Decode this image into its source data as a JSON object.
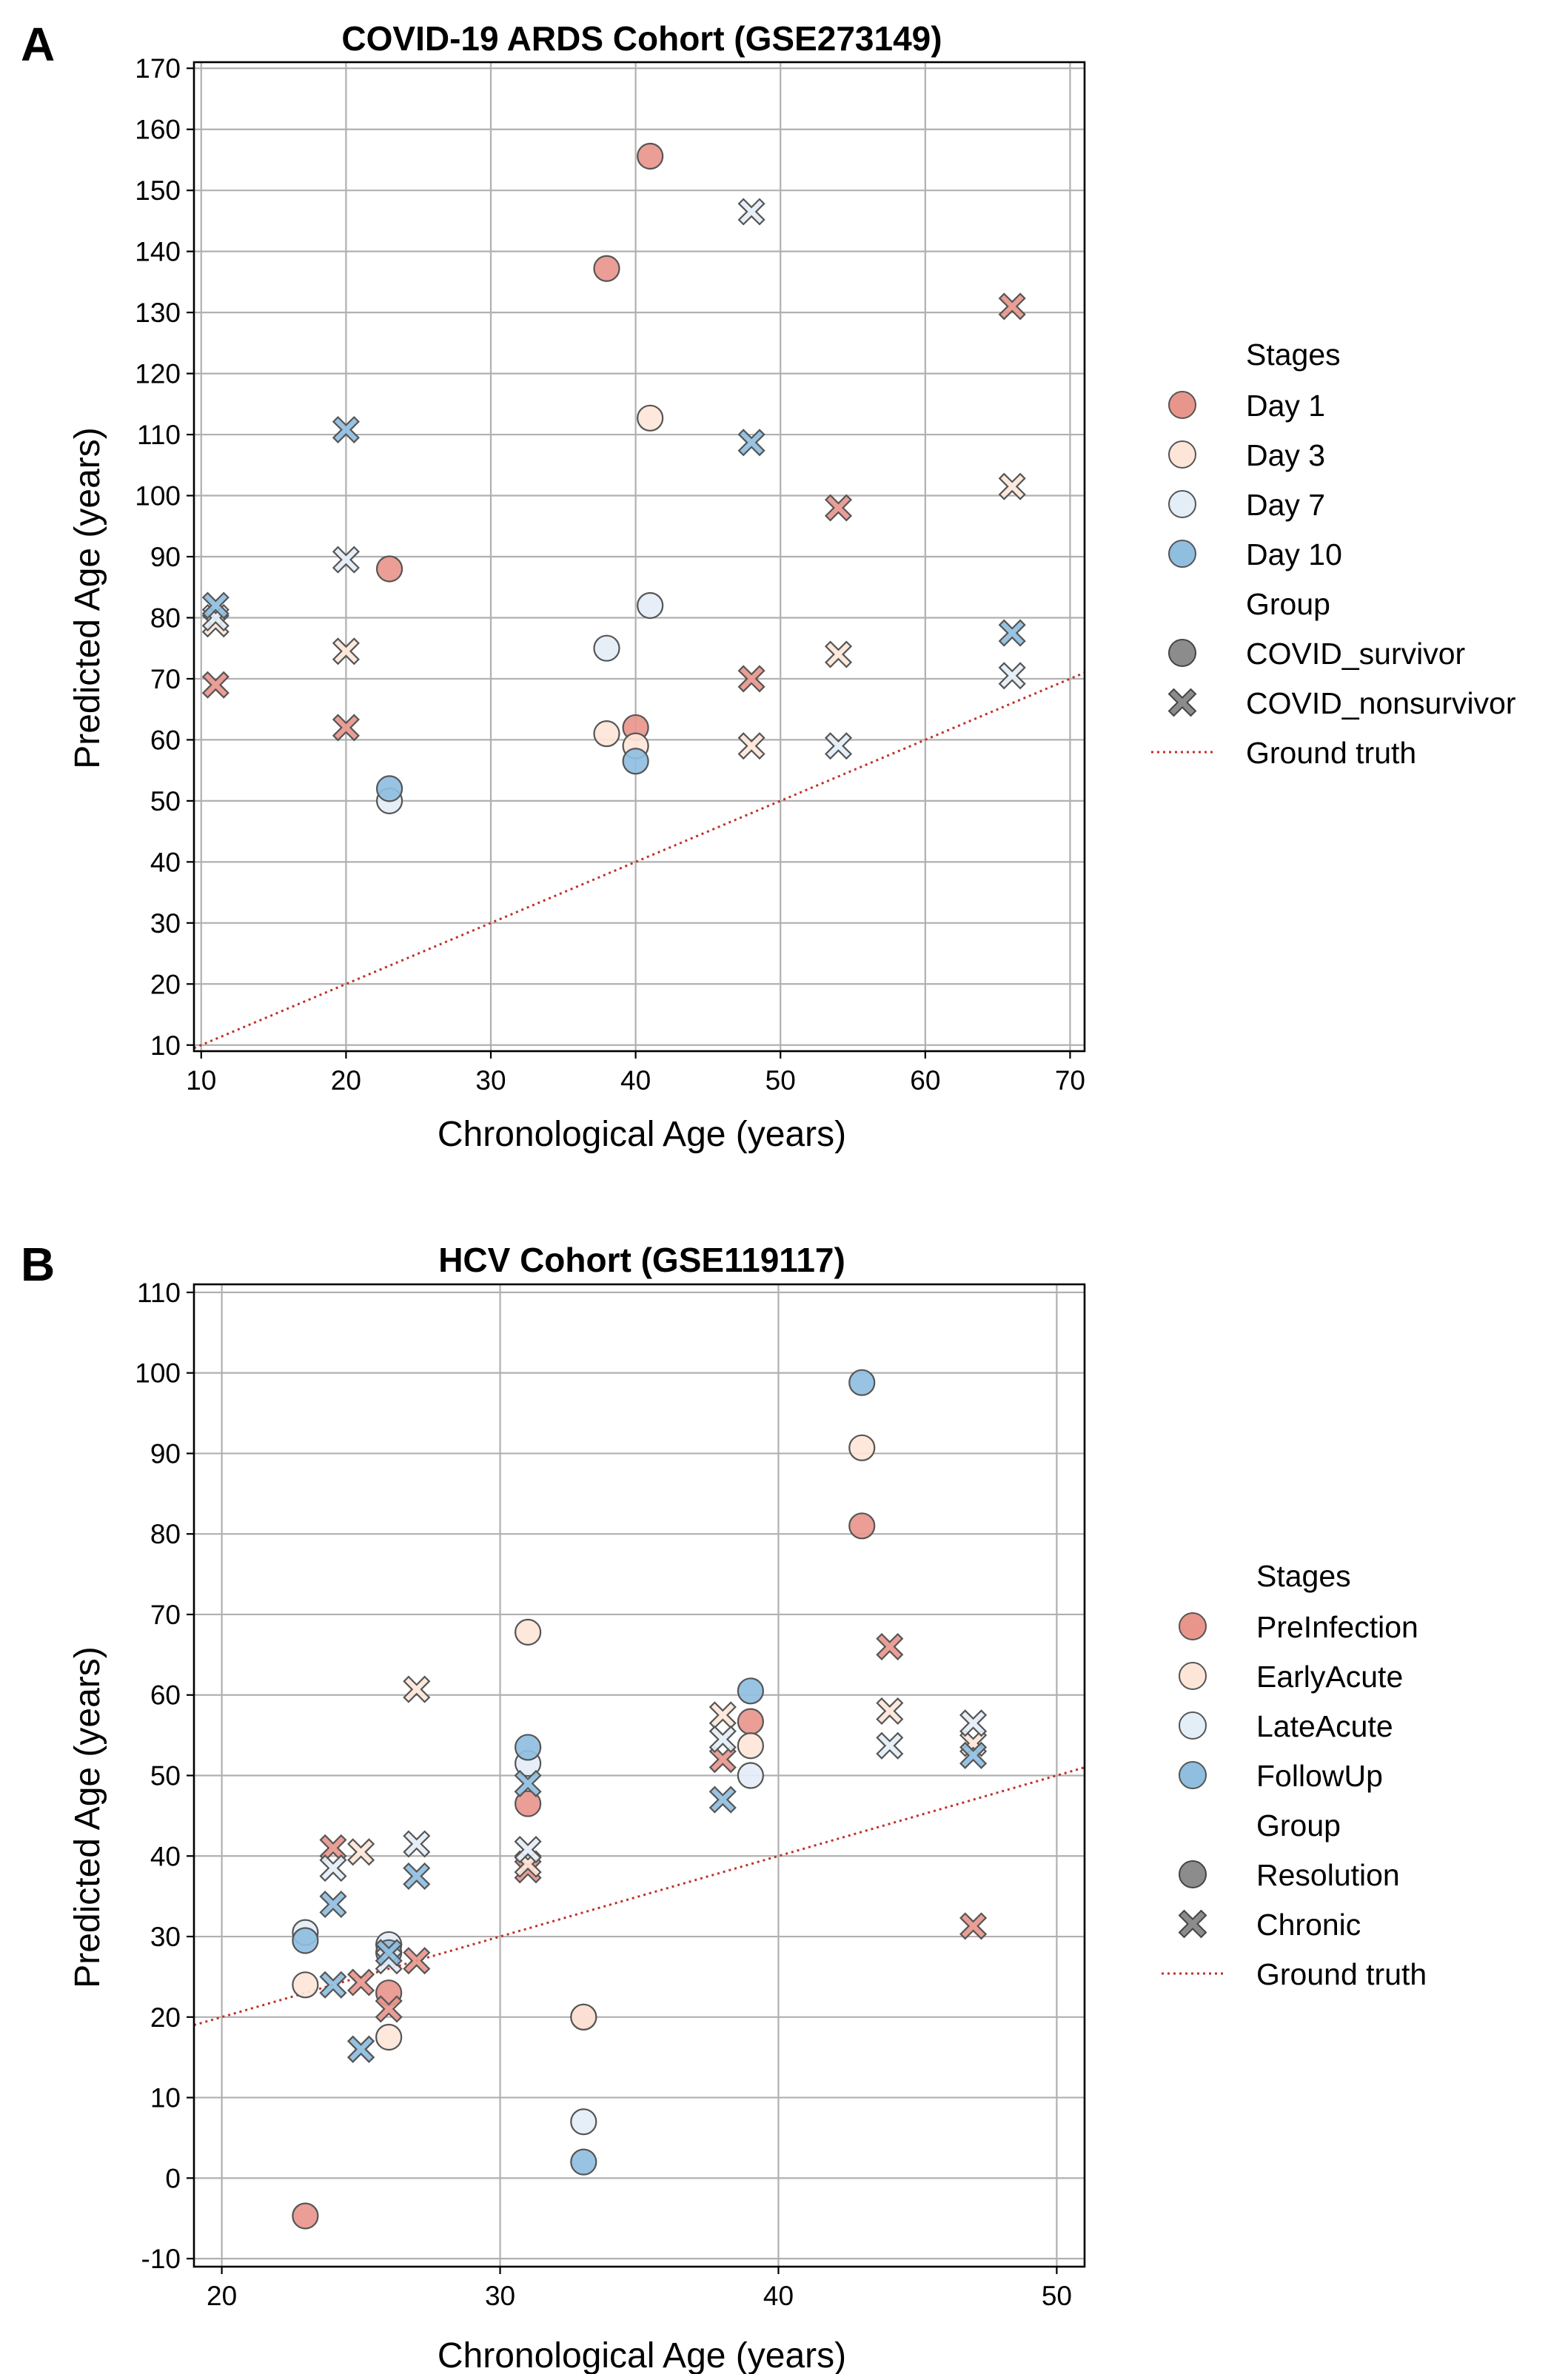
{
  "panels": [
    {
      "letter": "A",
      "legend": {
        "stages_title": "Stages",
        "group_title": "Group",
        "groups": [
          "COVID_survivor",
          "COVID_nonsurvivor"
        ],
        "ground_truth_label": "Ground truth"
      }
    },
    {
      "letter": "B",
      "legend": {
        "stages_title": "Stages",
        "group_title": "Group",
        "groups": [
          "Resolution",
          "Chronic"
        ],
        "ground_truth_label": "Ground truth"
      }
    }
  ],
  "colors": {
    "stage_1": "#e8968c",
    "stage_2": "#fde6d8",
    "stage_3": "#e4eef7",
    "stage_4": "#8fbedf",
    "marker_edge": "#555555",
    "legend_group_marker": "#8c8c8c",
    "ground_truth_line": "#c0302a"
  },
  "chart_data": [
    {
      "type": "scatter",
      "title": "COVID-19 ARDS Cohort (GSE273149)",
      "xlabel": "Chronological Age (years)",
      "ylabel": "Predicted Age (years)",
      "xlim": [
        9.5,
        71
      ],
      "ylim": [
        9,
        171
      ],
      "xticks": [
        10,
        20,
        30,
        40,
        50,
        60,
        70
      ],
      "yticks": [
        10,
        20,
        30,
        40,
        50,
        60,
        70,
        80,
        90,
        100,
        110,
        120,
        130,
        140,
        150,
        160,
        170
      ],
      "grid": true,
      "legend_position": "outside right",
      "stages": [
        "Day 1",
        "Day 3",
        "Day 7",
        "Day 10"
      ],
      "groups": [
        "COVID_survivor",
        "COVID_nonsurvivor"
      ],
      "ground_truth": {
        "label": "Ground truth",
        "style": "dotted",
        "y_equals_x": true
      },
      "points": [
        {
          "x": 11,
          "y": 69,
          "stage": "Day 1",
          "group": "COVID_nonsurvivor"
        },
        {
          "x": 11,
          "y": 79,
          "stage": "Day 3",
          "group": "COVID_nonsurvivor"
        },
        {
          "x": 11,
          "y": 80,
          "stage": "Day 7",
          "group": "COVID_nonsurvivor"
        },
        {
          "x": 11,
          "y": 82,
          "stage": "Day 10",
          "group": "COVID_nonsurvivor"
        },
        {
          "x": 20,
          "y": 62,
          "stage": "Day 1",
          "group": "COVID_nonsurvivor"
        },
        {
          "x": 20,
          "y": 74.5,
          "stage": "Day 3",
          "group": "COVID_nonsurvivor"
        },
        {
          "x": 20,
          "y": 89.5,
          "stage": "Day 7",
          "group": "COVID_nonsurvivor"
        },
        {
          "x": 20,
          "y": 110.8,
          "stage": "Day 10",
          "group": "COVID_nonsurvivor"
        },
        {
          "x": 23,
          "y": 88,
          "stage": "Day 1",
          "group": "COVID_survivor"
        },
        {
          "x": 23,
          "y": 50,
          "stage": "Day 7",
          "group": "COVID_survivor"
        },
        {
          "x": 23,
          "y": 52,
          "stage": "Day 10",
          "group": "COVID_survivor"
        },
        {
          "x": 38,
          "y": 137.2,
          "stage": "Day 1",
          "group": "COVID_survivor"
        },
        {
          "x": 38,
          "y": 61,
          "stage": "Day 3",
          "group": "COVID_survivor"
        },
        {
          "x": 38,
          "y": 75,
          "stage": "Day 7",
          "group": "COVID_survivor"
        },
        {
          "x": 41,
          "y": 155.6,
          "stage": "Day 1",
          "group": "COVID_survivor"
        },
        {
          "x": 41,
          "y": 112.7,
          "stage": "Day 3",
          "group": "COVID_survivor"
        },
        {
          "x": 41,
          "y": 82,
          "stage": "Day 7",
          "group": "COVID_survivor"
        },
        {
          "x": 40,
          "y": 62,
          "stage": "Day 1",
          "group": "COVID_survivor"
        },
        {
          "x": 40,
          "y": 59,
          "stage": "Day 3",
          "group": "COVID_survivor"
        },
        {
          "x": 40,
          "y": 56.5,
          "stage": "Day 10",
          "group": "COVID_survivor"
        },
        {
          "x": 48,
          "y": 70,
          "stage": "Day 1",
          "group": "COVID_nonsurvivor"
        },
        {
          "x": 48,
          "y": 59,
          "stage": "Day 3",
          "group": "COVID_nonsurvivor"
        },
        {
          "x": 48,
          "y": 146.5,
          "stage": "Day 7",
          "group": "COVID_nonsurvivor"
        },
        {
          "x": 48,
          "y": 108.7,
          "stage": "Day 10",
          "group": "COVID_nonsurvivor"
        },
        {
          "x": 54,
          "y": 98,
          "stage": "Day 1",
          "group": "COVID_nonsurvivor"
        },
        {
          "x": 54,
          "y": 74,
          "stage": "Day 3",
          "group": "COVID_nonsurvivor"
        },
        {
          "x": 54,
          "y": 59,
          "stage": "Day 7",
          "group": "COVID_nonsurvivor"
        },
        {
          "x": 66,
          "y": 131,
          "stage": "Day 1",
          "group": "COVID_nonsurvivor"
        },
        {
          "x": 66,
          "y": 101.5,
          "stage": "Day 3",
          "group": "COVID_nonsurvivor"
        },
        {
          "x": 66,
          "y": 70.5,
          "stage": "Day 7",
          "group": "COVID_nonsurvivor"
        },
        {
          "x": 66,
          "y": 77.5,
          "stage": "Day 10",
          "group": "COVID_nonsurvivor"
        }
      ]
    },
    {
      "type": "scatter",
      "title": "HCV Cohort (GSE119117)",
      "xlabel": "Chronological Age (years)",
      "ylabel": "Predicted Age (years)",
      "xlim": [
        19,
        51
      ],
      "ylim": [
        -11,
        111
      ],
      "xticks": [
        20,
        30,
        40,
        50
      ],
      "yticks": [
        -10,
        0,
        10,
        20,
        30,
        40,
        50,
        60,
        70,
        80,
        90,
        100,
        110
      ],
      "grid": true,
      "legend_position": "outside right",
      "stages": [
        "PreInfection",
        "EarlyAcute",
        "LateAcute",
        "FollowUp"
      ],
      "groups": [
        "Resolution",
        "Chronic"
      ],
      "ground_truth": {
        "label": "Ground truth",
        "style": "dotted",
        "y_equals_x": true
      },
      "points": [
        {
          "x": 23,
          "y": -4.7,
          "stage": "PreInfection",
          "group": "Resolution"
        },
        {
          "x": 23,
          "y": 24,
          "stage": "EarlyAcute",
          "group": "Resolution"
        },
        {
          "x": 23,
          "y": 30.5,
          "stage": "LateAcute",
          "group": "Resolution"
        },
        {
          "x": 23,
          "y": 29.5,
          "stage": "FollowUp",
          "group": "Resolution"
        },
        {
          "x": 24,
          "y": 41,
          "stage": "PreInfection",
          "group": "Chronic"
        },
        {
          "x": 24,
          "y": 38.5,
          "stage": "LateAcute",
          "group": "Chronic"
        },
        {
          "x": 24,
          "y": 34,
          "stage": "FollowUp",
          "group": "Chronic"
        },
        {
          "x": 24,
          "y": 24,
          "stage": "FollowUp",
          "group": "Chronic"
        },
        {
          "x": 25,
          "y": 24.3,
          "stage": "PreInfection",
          "group": "Chronic"
        },
        {
          "x": 25,
          "y": 40.5,
          "stage": "EarlyAcute",
          "group": "Chronic"
        },
        {
          "x": 25,
          "y": 16,
          "stage": "LateAcute",
          "group": "Chronic"
        },
        {
          "x": 25,
          "y": 16,
          "stage": "FollowUp",
          "group": "Chronic"
        },
        {
          "x": 26,
          "y": 23,
          "stage": "PreInfection",
          "group": "Resolution"
        },
        {
          "x": 26,
          "y": 17.5,
          "stage": "EarlyAcute",
          "group": "Resolution"
        },
        {
          "x": 26,
          "y": 29,
          "stage": "LateAcute",
          "group": "Resolution"
        },
        {
          "x": 26,
          "y": 28,
          "stage": "FollowUp",
          "group": "Resolution"
        },
        {
          "x": 26,
          "y": 21,
          "stage": "PreInfection",
          "group": "Chronic"
        },
        {
          "x": 26,
          "y": 27,
          "stage": "LateAcute",
          "group": "Chronic"
        },
        {
          "x": 26,
          "y": 28,
          "stage": "FollowUp",
          "group": "Chronic"
        },
        {
          "x": 27,
          "y": 27,
          "stage": "PreInfection",
          "group": "Chronic"
        },
        {
          "x": 27,
          "y": 60.7,
          "stage": "EarlyAcute",
          "group": "Chronic"
        },
        {
          "x": 27,
          "y": 41.5,
          "stage": "LateAcute",
          "group": "Chronic"
        },
        {
          "x": 27,
          "y": 37.5,
          "stage": "FollowUp",
          "group": "Chronic"
        },
        {
          "x": 31,
          "y": 46.5,
          "stage": "PreInfection",
          "group": "Resolution"
        },
        {
          "x": 31,
          "y": 67.8,
          "stage": "EarlyAcute",
          "group": "Resolution"
        },
        {
          "x": 31,
          "y": 51.5,
          "stage": "LateAcute",
          "group": "Resolution"
        },
        {
          "x": 31,
          "y": 53.5,
          "stage": "FollowUp",
          "group": "Resolution"
        },
        {
          "x": 31,
          "y": 38.3,
          "stage": "PreInfection",
          "group": "Chronic"
        },
        {
          "x": 31,
          "y": 39,
          "stage": "EarlyAcute",
          "group": "Chronic"
        },
        {
          "x": 31,
          "y": 40.8,
          "stage": "LateAcute",
          "group": "Chronic"
        },
        {
          "x": 31,
          "y": 49,
          "stage": "FollowUp",
          "group": "Chronic"
        },
        {
          "x": 33,
          "y": 20,
          "stage": "PreInfection",
          "group": "Resolution"
        },
        {
          "x": 33,
          "y": 20,
          "stage": "EarlyAcute",
          "group": "Resolution"
        },
        {
          "x": 33,
          "y": 7,
          "stage": "LateAcute",
          "group": "Resolution"
        },
        {
          "x": 33,
          "y": 2,
          "stage": "FollowUp",
          "group": "Resolution"
        },
        {
          "x": 38,
          "y": 52,
          "stage": "PreInfection",
          "group": "Chronic"
        },
        {
          "x": 38,
          "y": 57.5,
          "stage": "EarlyAcute",
          "group": "Chronic"
        },
        {
          "x": 38,
          "y": 54.5,
          "stage": "LateAcute",
          "group": "Chronic"
        },
        {
          "x": 38,
          "y": 47,
          "stage": "FollowUp",
          "group": "Chronic"
        },
        {
          "x": 39,
          "y": 56.7,
          "stage": "PreInfection",
          "group": "Resolution"
        },
        {
          "x": 39,
          "y": 53.7,
          "stage": "EarlyAcute",
          "group": "Resolution"
        },
        {
          "x": 39,
          "y": 50,
          "stage": "LateAcute",
          "group": "Resolution"
        },
        {
          "x": 39,
          "y": 60.5,
          "stage": "FollowUp",
          "group": "Resolution"
        },
        {
          "x": 43,
          "y": 81,
          "stage": "PreInfection",
          "group": "Resolution"
        },
        {
          "x": 43,
          "y": 90.7,
          "stage": "EarlyAcute",
          "group": "Resolution"
        },
        {
          "x": 43,
          "y": 98.8,
          "stage": "FollowUp",
          "group": "Resolution"
        },
        {
          "x": 44,
          "y": 66,
          "stage": "PreInfection",
          "group": "Chronic"
        },
        {
          "x": 44,
          "y": 58,
          "stage": "EarlyAcute",
          "group": "Chronic"
        },
        {
          "x": 44,
          "y": 53.7,
          "stage": "LateAcute",
          "group": "Chronic"
        },
        {
          "x": 47,
          "y": 31.3,
          "stage": "PreInfection",
          "group": "Chronic"
        },
        {
          "x": 47,
          "y": 54,
          "stage": "EarlyAcute",
          "group": "Chronic"
        },
        {
          "x": 47,
          "y": 56.5,
          "stage": "LateAcute",
          "group": "Chronic"
        },
        {
          "x": 47,
          "y": 52.5,
          "stage": "FollowUp",
          "group": "Chronic"
        }
      ]
    }
  ]
}
